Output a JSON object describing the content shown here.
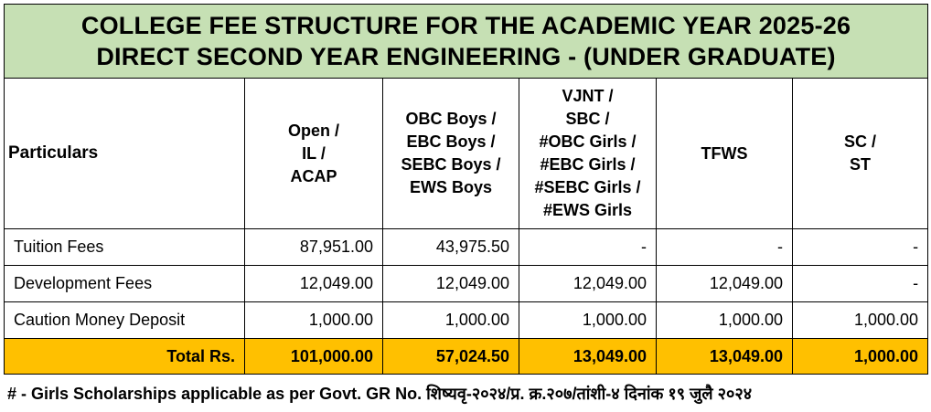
{
  "title": {
    "line1": "COLLEGE FEE STRUCTURE FOR THE ACADEMIC YEAR 2025-26",
    "line2": "DIRECT SECOND YEAR ENGINEERING - (UNDER GRADUATE)"
  },
  "header": {
    "particulars": "Particulars",
    "columns": [
      [
        "Open /",
        "IL /",
        "ACAP"
      ],
      [
        "OBC Boys /",
        "EBC Boys /",
        "SEBC Boys /",
        "EWS Boys"
      ],
      [
        "VJNT /",
        "SBC /",
        "#OBC Girls /",
        "#EBC Girls /",
        "#SEBC Girls /",
        "#EWS Girls"
      ],
      [
        "TFWS"
      ],
      [
        "SC /",
        "ST"
      ]
    ]
  },
  "rows": [
    {
      "label": "Tuition Fees",
      "values": [
        "87,951.00",
        "43,975.50",
        "-",
        "-",
        "-"
      ]
    },
    {
      "label": "Development Fees",
      "values": [
        "12,049.00",
        "12,049.00",
        "12,049.00",
        "12,049.00",
        "-"
      ]
    },
    {
      "label": "Caution Money Deposit",
      "values": [
        "1,000.00",
        "1,000.00",
        "1,000.00",
        "1,000.00",
        "1,000.00"
      ]
    }
  ],
  "total": {
    "label": "Total Rs.",
    "values": [
      "101,000.00",
      "57,024.50",
      "13,049.00",
      "13,049.00",
      "1,000.00"
    ]
  },
  "footnote": "# - Girls Scholarships applicable as per Govt. GR No. शिष्यवृ-२०२४/प्र. क्र.२०७/तांशी-४ दिनांक १९ जुलै २०२४",
  "colors": {
    "title_bg": "#c6e0b4",
    "total_bg": "#ffc000",
    "border": "#000000"
  }
}
